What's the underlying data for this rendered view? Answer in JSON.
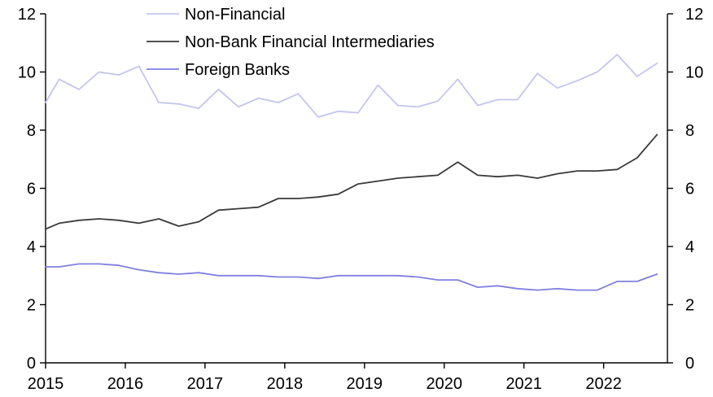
{
  "chart_data": {
    "type": "line",
    "title": "",
    "xlabel": "",
    "ylabel": "",
    "ylim": [
      0,
      12
    ],
    "xlim": [
      2015,
      2022.8
    ],
    "y_ticks": [
      0,
      2,
      4,
      6,
      8,
      10,
      12
    ],
    "x_ticks": [
      2015,
      2016,
      2017,
      2018,
      2019,
      2020,
      2021,
      2022
    ],
    "grid": false,
    "legend_position": "top-center",
    "dual_y_axis": true,
    "series": [
      {
        "name": "Non-Financial",
        "color": "#c4c4f0",
        "points": [
          [
            2015.0,
            8.95
          ],
          [
            2015.17,
            9.75
          ],
          [
            2015.42,
            9.4
          ],
          [
            2015.67,
            10.0
          ],
          [
            2015.92,
            9.9
          ],
          [
            2016.17,
            10.2
          ],
          [
            2016.42,
            8.95
          ],
          [
            2016.67,
            8.9
          ],
          [
            2016.92,
            8.75
          ],
          [
            2017.17,
            9.4
          ],
          [
            2017.42,
            8.8
          ],
          [
            2017.67,
            9.1
          ],
          [
            2017.92,
            8.95
          ],
          [
            2018.17,
            9.25
          ],
          [
            2018.42,
            8.45
          ],
          [
            2018.67,
            8.65
          ],
          [
            2018.92,
            8.6
          ],
          [
            2019.17,
            9.55
          ],
          [
            2019.42,
            8.85
          ],
          [
            2019.67,
            8.8
          ],
          [
            2019.92,
            9.0
          ],
          [
            2020.17,
            9.75
          ],
          [
            2020.42,
            8.85
          ],
          [
            2020.67,
            9.05
          ],
          [
            2020.92,
            9.05
          ],
          [
            2021.17,
            9.95
          ],
          [
            2021.42,
            9.45
          ],
          [
            2021.67,
            9.7
          ],
          [
            2021.92,
            10.0
          ],
          [
            2022.17,
            10.6
          ],
          [
            2022.42,
            9.85
          ],
          [
            2022.67,
            10.3
          ]
        ]
      },
      {
        "name": "Non-Bank Financial Intermediaries",
        "color": "#3a3a3a",
        "points": [
          [
            2015.0,
            4.6
          ],
          [
            2015.17,
            4.8
          ],
          [
            2015.42,
            4.9
          ],
          [
            2015.67,
            4.95
          ],
          [
            2015.92,
            4.9
          ],
          [
            2016.17,
            4.8
          ],
          [
            2016.42,
            4.95
          ],
          [
            2016.67,
            4.7
          ],
          [
            2016.92,
            4.85
          ],
          [
            2017.17,
            5.25
          ],
          [
            2017.42,
            5.3
          ],
          [
            2017.67,
            5.35
          ],
          [
            2017.92,
            5.65
          ],
          [
            2018.17,
            5.65
          ],
          [
            2018.42,
            5.7
          ],
          [
            2018.67,
            5.8
          ],
          [
            2018.92,
            6.15
          ],
          [
            2019.17,
            6.25
          ],
          [
            2019.42,
            6.35
          ],
          [
            2019.67,
            6.4
          ],
          [
            2019.92,
            6.45
          ],
          [
            2020.17,
            6.9
          ],
          [
            2020.42,
            6.45
          ],
          [
            2020.67,
            6.4
          ],
          [
            2020.92,
            6.45
          ],
          [
            2021.17,
            6.35
          ],
          [
            2021.42,
            6.5
          ],
          [
            2021.67,
            6.6
          ],
          [
            2021.92,
            6.6
          ],
          [
            2022.17,
            6.65
          ],
          [
            2022.42,
            7.05
          ],
          [
            2022.67,
            7.85
          ]
        ]
      },
      {
        "name": "Foreign Banks",
        "color": "#8080e0",
        "points": [
          [
            2015.0,
            3.3
          ],
          [
            2015.17,
            3.3
          ],
          [
            2015.42,
            3.4
          ],
          [
            2015.67,
            3.4
          ],
          [
            2015.92,
            3.35
          ],
          [
            2016.17,
            3.2
          ],
          [
            2016.42,
            3.1
          ],
          [
            2016.67,
            3.05
          ],
          [
            2016.92,
            3.1
          ],
          [
            2017.17,
            3.0
          ],
          [
            2017.42,
            3.0
          ],
          [
            2017.67,
            3.0
          ],
          [
            2017.92,
            2.95
          ],
          [
            2018.17,
            2.95
          ],
          [
            2018.42,
            2.9
          ],
          [
            2018.67,
            3.0
          ],
          [
            2018.92,
            3.0
          ],
          [
            2019.17,
            3.0
          ],
          [
            2019.42,
            3.0
          ],
          [
            2019.67,
            2.95
          ],
          [
            2019.92,
            2.85
          ],
          [
            2020.17,
            2.85
          ],
          [
            2020.42,
            2.6
          ],
          [
            2020.67,
            2.65
          ],
          [
            2020.92,
            2.55
          ],
          [
            2021.17,
            2.5
          ],
          [
            2021.42,
            2.55
          ],
          [
            2021.67,
            2.5
          ],
          [
            2021.92,
            2.5
          ],
          [
            2022.17,
            2.8
          ],
          [
            2022.42,
            2.8
          ],
          [
            2022.67,
            3.05
          ]
        ]
      }
    ]
  }
}
